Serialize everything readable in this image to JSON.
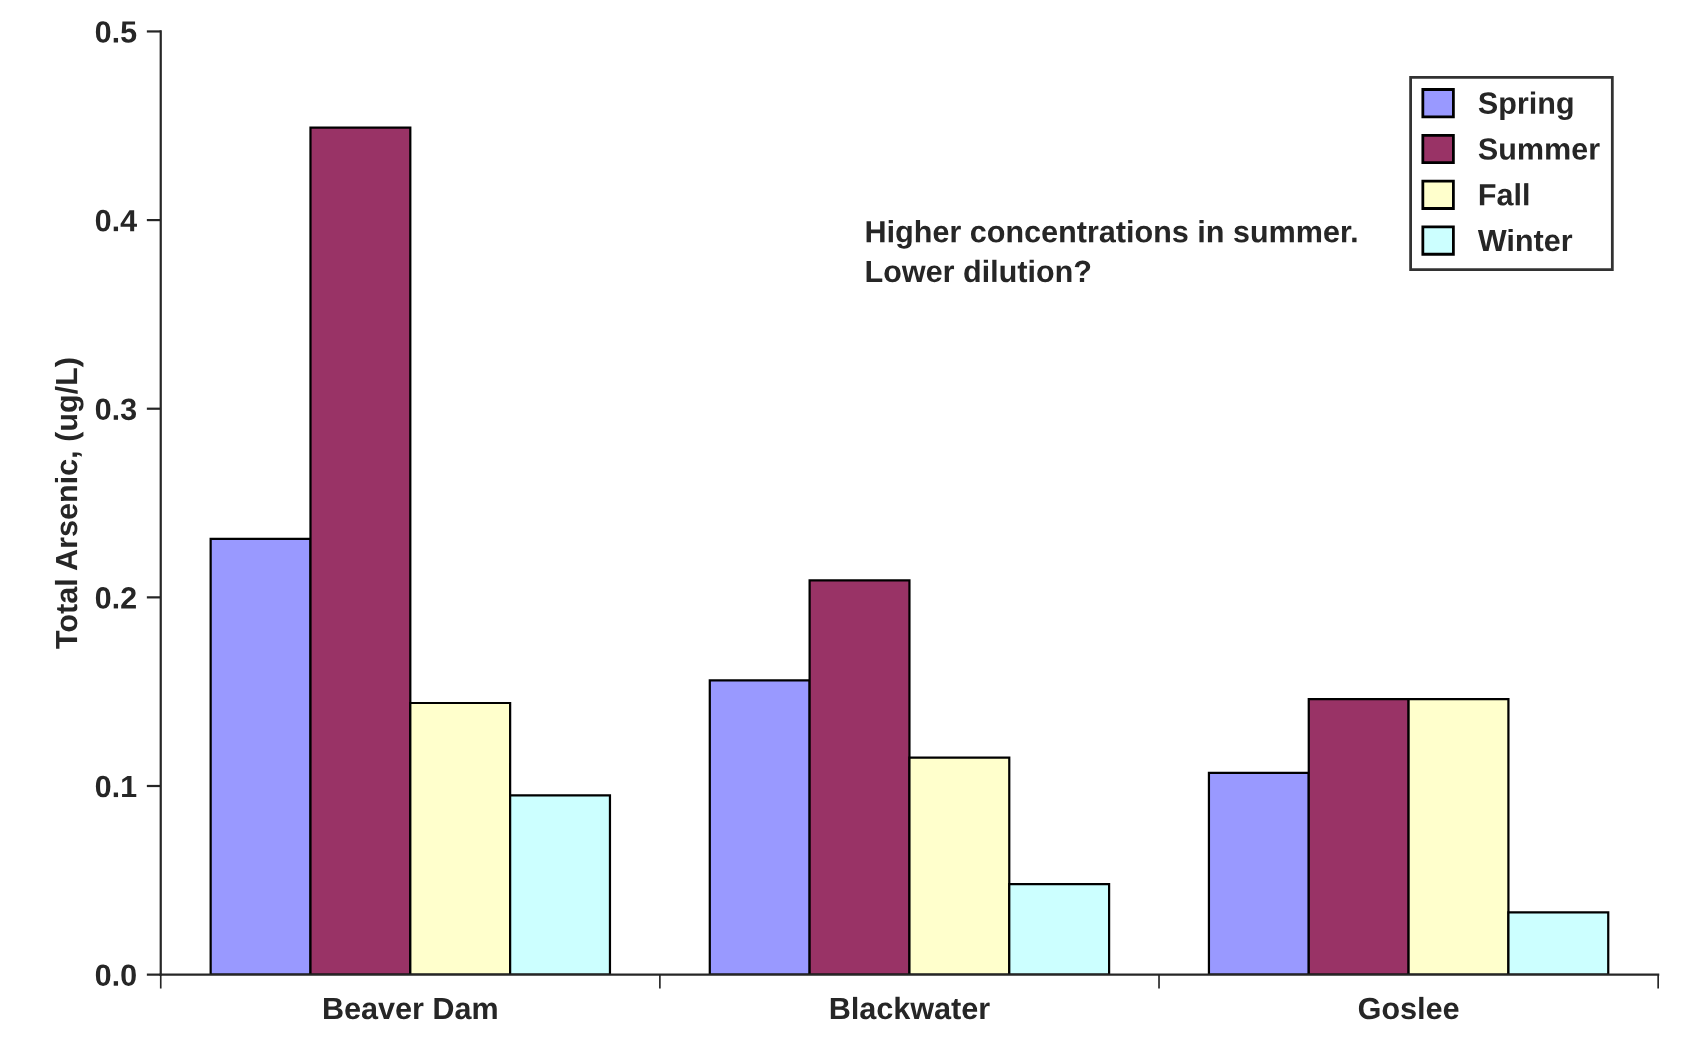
{
  "chart_data": {
    "type": "bar",
    "ylabel": "Total Arsenic, (ug/L)",
    "categories": [
      "Beaver Dam",
      "Blackwater",
      "Goslee"
    ],
    "series": [
      {
        "name": "Spring",
        "color": "#9999ff",
        "values": [
          0.231,
          0.156,
          0.107
        ]
      },
      {
        "name": "Summer",
        "color": "#993366",
        "values": [
          0.449,
          0.209,
          0.146
        ]
      },
      {
        "name": "Fall",
        "color": "#ffffcc",
        "values": [
          0.144,
          0.115,
          0.146
        ]
      },
      {
        "name": "Winter",
        "color": "#ccffff",
        "values": [
          0.095,
          0.048,
          0.033
        ]
      }
    ],
    "ylim": [
      0.0,
      0.5
    ],
    "yticks": [
      {
        "value": 0,
        "label": "0.0"
      },
      0.1,
      0.2,
      0.3,
      0.4,
      0.5
    ],
    "annotations": [
      "Higher concentrations in summer.\nLower dilution?"
    ],
    "grid": false,
    "legend": "top right"
  }
}
